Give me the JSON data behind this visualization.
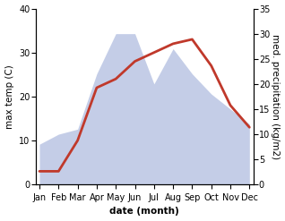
{
  "months": [
    "Jan",
    "Feb",
    "Mar",
    "Apr",
    "May",
    "Jun",
    "Jul",
    "Aug",
    "Sep",
    "Oct",
    "Nov",
    "Dec"
  ],
  "temperature": [
    3,
    3,
    10,
    22,
    24,
    28,
    30,
    32,
    33,
    27,
    18,
    13
  ],
  "precipitation": [
    8,
    10,
    11,
    22,
    30,
    30,
    20,
    27,
    22,
    18,
    15,
    12
  ],
  "temp_color": "#c0392b",
  "precip_color": "#b0bde0",
  "temp_ylim": [
    0,
    40
  ],
  "precip_ylim": [
    0,
    35
  ],
  "temp_yticks": [
    0,
    10,
    20,
    30,
    40
  ],
  "precip_yticks": [
    0,
    5,
    10,
    15,
    20,
    25,
    30,
    35
  ],
  "xlabel": "date (month)",
  "ylabel_left": "max temp (C)",
  "ylabel_right": "med. precipitation (kg/m2)",
  "label_fontsize": 7.5,
  "tick_fontsize": 7,
  "line_width": 2.0,
  "background_color": "#ffffff"
}
